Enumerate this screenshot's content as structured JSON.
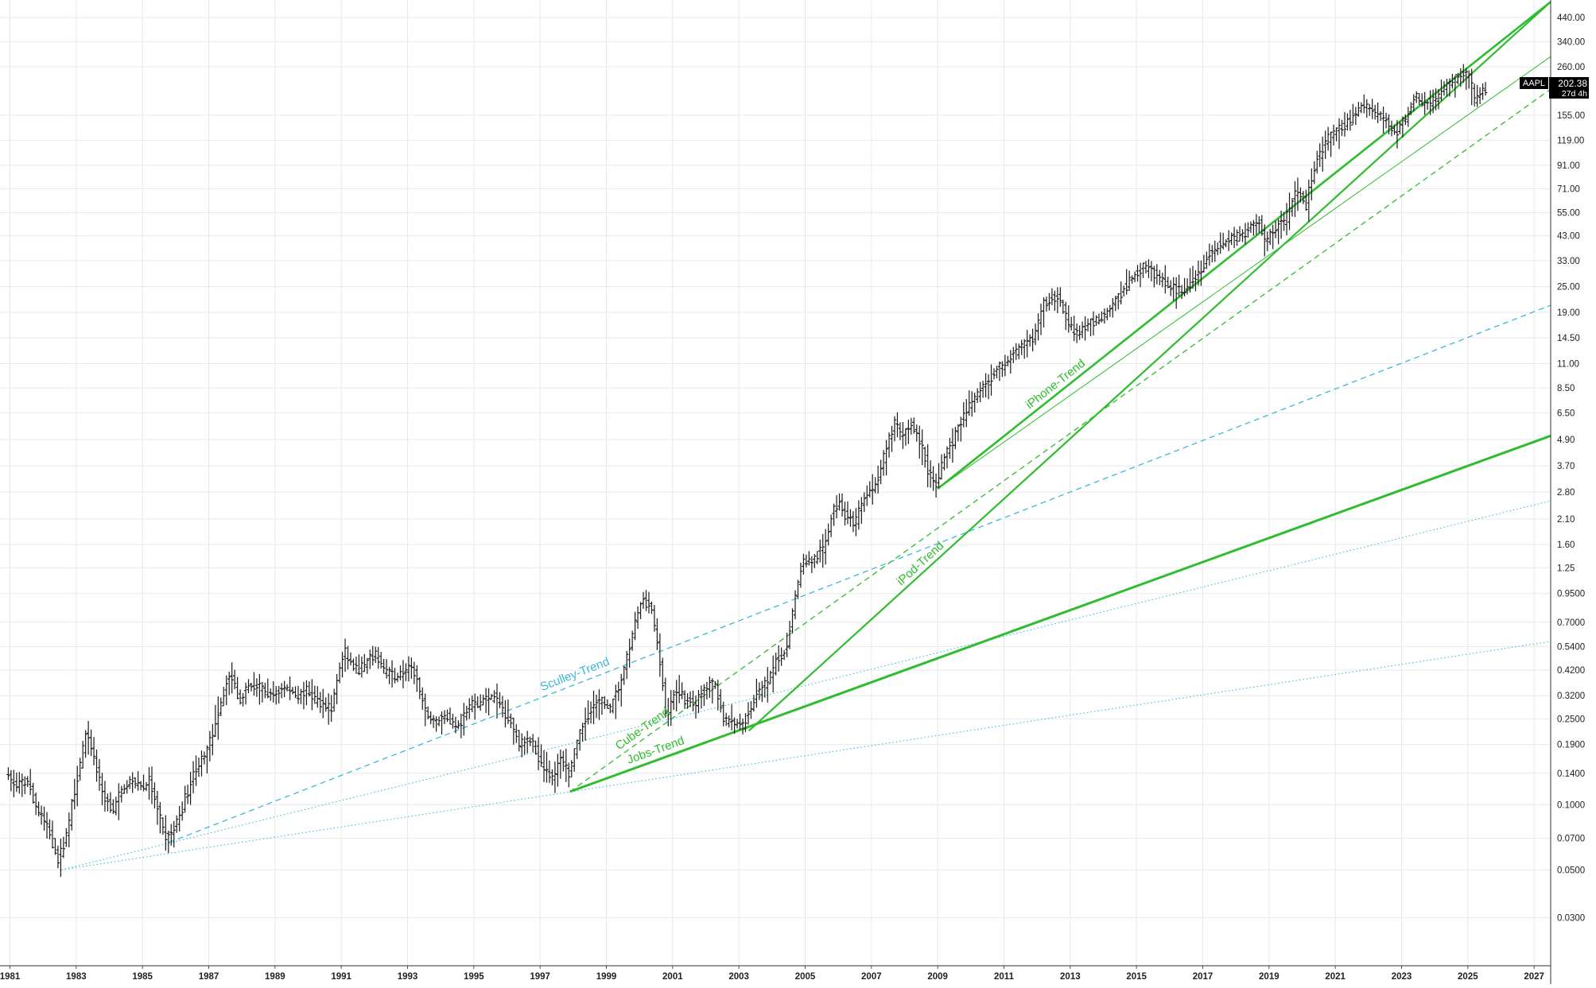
{
  "chart_data": {
    "type": "ohlc",
    "ticker": "AAPL",
    "last_price_label": "202.38",
    "countdown_label": "27d 4h",
    "y_scale": "log",
    "ylim": [
      0.018,
      530
    ],
    "xlim": [
      1980.7,
      2027.5
    ],
    "y_ticks": [
      "440.00",
      "340.00",
      "260.00",
      "155.00",
      "119.00",
      "91.00",
      "71.00",
      "55.00",
      "43.00",
      "33.00",
      "25.00",
      "19.00",
      "14.50",
      "11.00",
      "8.50",
      "6.50",
      "4.90",
      "3.70",
      "2.80",
      "2.10",
      "1.60",
      "1.25",
      "0.9500",
      "0.7000",
      "0.5400",
      "0.4200",
      "0.3200",
      "0.2500",
      "0.1900",
      "0.1400",
      "0.1000",
      "0.0700",
      "0.0500",
      "0.0300"
    ],
    "x_ticks": [
      "1981",
      "1983",
      "1985",
      "1987",
      "1989",
      "1991",
      "1993",
      "1995",
      "1997",
      "1999",
      "2001",
      "2003",
      "2005",
      "2007",
      "2009",
      "2011",
      "2013",
      "2015",
      "2017",
      "2019",
      "2021",
      "2023",
      "2025",
      "2027"
    ],
    "grid": true,
    "price_path": [
      [
        1980.95,
        0.14
      ],
      [
        1981.3,
        0.12
      ],
      [
        1981.6,
        0.13
      ],
      [
        1981.9,
        0.095
      ],
      [
        1982.2,
        0.08
      ],
      [
        1982.55,
        0.055
      ],
      [
        1982.75,
        0.07
      ],
      [
        1983.1,
        0.13
      ],
      [
        1983.4,
        0.22
      ],
      [
        1983.6,
        0.17
      ],
      [
        1983.9,
        0.11
      ],
      [
        1984.2,
        0.095
      ],
      [
        1984.5,
        0.12
      ],
      [
        1984.8,
        0.13
      ],
      [
        1985.1,
        0.12
      ],
      [
        1985.3,
        0.13
      ],
      [
        1985.55,
        0.09
      ],
      [
        1985.8,
        0.07
      ],
      [
        1986.0,
        0.075
      ],
      [
        1986.3,
        0.1
      ],
      [
        1986.7,
        0.15
      ],
      [
        1987.0,
        0.17
      ],
      [
        1987.3,
        0.25
      ],
      [
        1987.6,
        0.36
      ],
      [
        1987.8,
        0.4
      ],
      [
        1988.0,
        0.3
      ],
      [
        1988.3,
        0.36
      ],
      [
        1988.7,
        0.34
      ],
      [
        1989.0,
        0.32
      ],
      [
        1989.4,
        0.35
      ],
      [
        1989.8,
        0.32
      ],
      [
        1990.0,
        0.34
      ],
      [
        1990.4,
        0.3
      ],
      [
        1990.8,
        0.28
      ],
      [
        1991.0,
        0.42
      ],
      [
        1991.2,
        0.5
      ],
      [
        1991.5,
        0.42
      ],
      [
        1991.8,
        0.44
      ],
      [
        1992.1,
        0.5
      ],
      [
        1992.4,
        0.42
      ],
      [
        1992.7,
        0.39
      ],
      [
        1993.0,
        0.42
      ],
      [
        1993.3,
        0.41
      ],
      [
        1993.6,
        0.27
      ],
      [
        1993.9,
        0.24
      ],
      [
        1994.2,
        0.26
      ],
      [
        1994.6,
        0.23
      ],
      [
        1994.9,
        0.28
      ],
      [
        1995.3,
        0.3
      ],
      [
        1995.6,
        0.32
      ],
      [
        1995.9,
        0.29
      ],
      [
        1996.2,
        0.24
      ],
      [
        1996.5,
        0.19
      ],
      [
        1996.8,
        0.2
      ],
      [
        1997.1,
        0.16
      ],
      [
        1997.5,
        0.13
      ],
      [
        1997.7,
        0.17
      ],
      [
        1997.95,
        0.14
      ],
      [
        1998.3,
        0.22
      ],
      [
        1998.6,
        0.28
      ],
      [
        1998.9,
        0.3
      ],
      [
        1999.2,
        0.28
      ],
      [
        1999.5,
        0.36
      ],
      [
        1999.8,
        0.55
      ],
      [
        2000.0,
        0.75
      ],
      [
        2000.2,
        0.9
      ],
      [
        2000.45,
        0.8
      ],
      [
        2000.7,
        0.45
      ],
      [
        2000.9,
        0.25
      ],
      [
        2001.2,
        0.35
      ],
      [
        2001.5,
        0.3
      ],
      [
        2001.8,
        0.3
      ],
      [
        2002.1,
        0.35
      ],
      [
        2002.4,
        0.36
      ],
      [
        2002.6,
        0.25
      ],
      [
        2002.9,
        0.24
      ],
      [
        2003.1,
        0.23
      ],
      [
        2003.3,
        0.25
      ],
      [
        2003.6,
        0.32
      ],
      [
        2003.9,
        0.36
      ],
      [
        2004.2,
        0.45
      ],
      [
        2004.5,
        0.52
      ],
      [
        2004.8,
        0.95
      ],
      [
        2005.0,
        1.35
      ],
      [
        2005.3,
        1.35
      ],
      [
        2005.6,
        1.5
      ],
      [
        2005.9,
        2.2
      ],
      [
        2006.1,
        2.6
      ],
      [
        2006.3,
        2.2
      ],
      [
        2006.6,
        2.0
      ],
      [
        2006.9,
        2.8
      ],
      [
        2007.2,
        3.0
      ],
      [
        2007.5,
        4.2
      ],
      [
        2007.8,
        6.0
      ],
      [
        2008.0,
        5.0
      ],
      [
        2008.3,
        5.8
      ],
      [
        2008.6,
        4.5
      ],
      [
        2008.8,
        3.5
      ],
      [
        2009.0,
        3.0
      ],
      [
        2009.3,
        4.1
      ],
      [
        2009.7,
        5.5
      ],
      [
        2010.0,
        7.0
      ],
      [
        2010.4,
        8.5
      ],
      [
        2010.8,
        10.0
      ],
      [
        2011.2,
        11.5
      ],
      [
        2011.6,
        13.0
      ],
      [
        2012.0,
        15.0
      ],
      [
        2012.3,
        21.0
      ],
      [
        2012.7,
        23.0
      ],
      [
        2013.0,
        17.0
      ],
      [
        2013.3,
        15.0
      ],
      [
        2013.7,
        17.0
      ],
      [
        2014.1,
        18.5
      ],
      [
        2014.5,
        22.0
      ],
      [
        2014.9,
        27.0
      ],
      [
        2015.3,
        31.0
      ],
      [
        2015.7,
        28.0
      ],
      [
        2016.1,
        25.0
      ],
      [
        2016.4,
        24.0
      ],
      [
        2016.8,
        27.0
      ],
      [
        2017.2,
        34.0
      ],
      [
        2017.6,
        39.0
      ],
      [
        2018.0,
        42.0
      ],
      [
        2018.4,
        45.0
      ],
      [
        2018.75,
        52.0
      ],
      [
        2018.95,
        40.0
      ],
      [
        2019.2,
        45.0
      ],
      [
        2019.6,
        52.0
      ],
      [
        2019.9,
        70.0
      ],
      [
        2020.2,
        60.0
      ],
      [
        2020.5,
        95.0
      ],
      [
        2020.8,
        118.0
      ],
      [
        2021.1,
        130.0
      ],
      [
        2021.5,
        145.0
      ],
      [
        2021.9,
        175.0
      ],
      [
        2022.2,
        165.0
      ],
      [
        2022.5,
        150.0
      ],
      [
        2022.9,
        130.0
      ],
      [
        2023.2,
        150.0
      ],
      [
        2023.5,
        190.0
      ],
      [
        2023.8,
        175.0
      ],
      [
        2024.1,
        185.0
      ],
      [
        2024.4,
        210.0
      ],
      [
        2024.7,
        225.0
      ],
      [
        2024.95,
        245.0
      ],
      [
        2025.15,
        225.0
      ],
      [
        2025.3,
        175.0
      ],
      [
        2025.55,
        210.0
      ],
      [
        2025.6,
        202.38
      ]
    ],
    "trendlines": [
      {
        "label": "Sculley-Trend",
        "color": "#3bb9d9",
        "style": "dashed",
        "width": 1.3,
        "x1": 1985.8,
        "y1": 0.067,
        "x2": 2027.5,
        "y2": 20.5
      },
      {
        "label": "",
        "color": "#3bb9d9",
        "style": "dotted",
        "width": 1.1,
        "x1": 1982.55,
        "y1": 0.05,
        "x2": 2027.5,
        "y2": 2.55
      },
      {
        "label": "",
        "color": "#3bb9d9",
        "style": "dotted",
        "width": 1.1,
        "x1": 1982.55,
        "y1": 0.05,
        "x2": 2027.5,
        "y2": 0.57
      },
      {
        "label": "Jobs-Trend",
        "color": "#2ebd2e",
        "style": "solid",
        "width": 3,
        "x1": 1997.9,
        "y1": 0.115,
        "x2": 2027.5,
        "y2": 5.1
      },
      {
        "label": "Cube-Trend",
        "color": "#2ebd2e",
        "style": "dashed",
        "width": 1.3,
        "x1": 1997.9,
        "y1": 0.115,
        "x2": 2027.5,
        "y2": 205.0
      },
      {
        "label": "iPod-Trend",
        "color": "#2ebd2e",
        "style": "solid",
        "width": 2.2,
        "x1": 2003.3,
        "y1": 0.22,
        "x2": 2027.5,
        "y2": 520.0
      },
      {
        "label": "iPhone-Trend",
        "color": "#2ebd2e",
        "style": "solid",
        "width": 2.6,
        "x1": 2009.0,
        "y1": 2.9,
        "x2": 2027.5,
        "y2": 520.0
      },
      {
        "label": "",
        "color": "#2ebd2e",
        "style": "solid",
        "width": 1,
        "x1": 2009.0,
        "y1": 2.9,
        "x2": 2027.5,
        "y2": 290.0
      }
    ]
  }
}
